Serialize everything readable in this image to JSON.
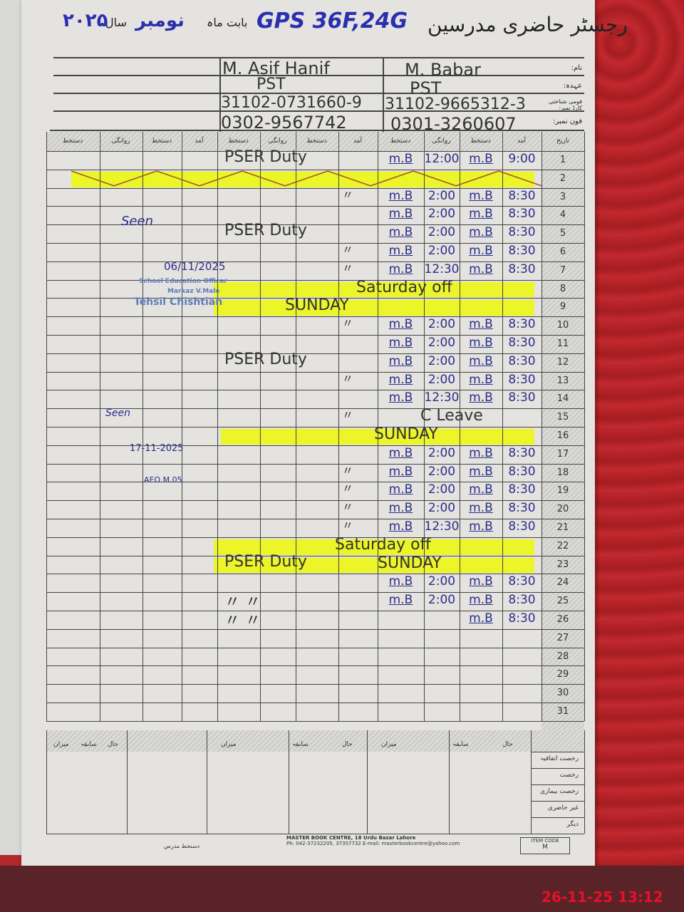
{
  "header": {
    "title_urdu": "رجسٹر حاضری مدرسین",
    "school": "GPS 36F,24G",
    "month_label": "بابت ماہ",
    "month": "نومبر",
    "year_label": "سال",
    "year": "۲۰۲۵"
  },
  "info_labels": [
    "نام:",
    "عہدہ:",
    "قومی شناختی کارڈ نمبر:",
    "فون نمبر:"
  ],
  "teachers": [
    {
      "name": "M. Babar",
      "designation": "PST",
      "cnic": "31102-9665312-3",
      "phone": "0301-3260607"
    },
    {
      "name": "M. Asif Hanif",
      "designation": "PST",
      "cnic": "31102-0731660-9",
      "phone": "0302-9567742"
    }
  ],
  "column_headers": {
    "date": "تاریخ",
    "arrival": "آمد",
    "signature": "دستخط",
    "departure": "روانگی"
  },
  "rows": [
    {
      "day": 1,
      "babar": [
        "m.B",
        "12:00",
        "m.B",
        "9:00"
      ],
      "asif": "PSER Duty"
    },
    {
      "day": 2,
      "babar": [
        "",
        "",
        "",
        ""
      ],
      "asif": ""
    },
    {
      "day": 3,
      "babar": [
        "m.B",
        "2:00",
        "m.B",
        "8:30"
      ],
      "asif": "〃"
    },
    {
      "day": 4,
      "babar": [
        "m.B",
        "2:00",
        "m.B",
        "8:30"
      ],
      "asif": ""
    },
    {
      "day": 5,
      "babar": [
        "m.B",
        "2:00",
        "m.B",
        "8:30"
      ],
      "asif": "PSER Duty"
    },
    {
      "day": 6,
      "babar": [
        "m.B",
        "2:00",
        "m.B",
        "8:30"
      ],
      "asif": "〃"
    },
    {
      "day": 7,
      "babar": [
        "m.B",
        "12:30",
        "m.B",
        "8:30"
      ],
      "asif": "〃"
    },
    {
      "day": 8,
      "babar": [
        "",
        "",
        "",
        ""
      ],
      "asif": ""
    },
    {
      "day": 9,
      "babar": [
        "",
        "",
        "",
        ""
      ],
      "asif": ""
    },
    {
      "day": 10,
      "babar": [
        "m.B",
        "2:00",
        "m.B",
        "8:30"
      ],
      "asif": "〃"
    },
    {
      "day": 11,
      "babar": [
        "m.B",
        "2:00",
        "m.B",
        "8:30"
      ],
      "asif": ""
    },
    {
      "day": 12,
      "babar": [
        "m.B",
        "2:00",
        "m.B",
        "8:30"
      ],
      "asif": "PSER Duty"
    },
    {
      "day": 13,
      "babar": [
        "m.B",
        "2:00",
        "m.B",
        "8:30"
      ],
      "asif": "〃"
    },
    {
      "day": 14,
      "babar": [
        "m.B",
        "12:30",
        "m.B",
        "8:30"
      ],
      "asif": ""
    },
    {
      "day": 15,
      "babar": [
        "",
        "",
        "",
        ""
      ],
      "asif": "〃"
    },
    {
      "day": 16,
      "babar": [
        "",
        "",
        "",
        ""
      ],
      "asif": ""
    },
    {
      "day": 17,
      "babar": [
        "m.B",
        "2:00",
        "m.B",
        "8:30"
      ],
      "asif": ""
    },
    {
      "day": 18,
      "babar": [
        "m.B",
        "2:00",
        "m.B",
        "8:30"
      ],
      "asif": "〃"
    },
    {
      "day": 19,
      "babar": [
        "m.B",
        "2:00",
        "m.B",
        "8:30"
      ],
      "asif": "〃"
    },
    {
      "day": 20,
      "babar": [
        "m.B",
        "2:00",
        "m.B",
        "8:30"
      ],
      "asif": "〃"
    },
    {
      "day": 21,
      "babar": [
        "m.B",
        "12:30",
        "m.B",
        "8:30"
      ],
      "asif": "〃"
    },
    {
      "day": 22,
      "babar": [
        "",
        "",
        "",
        ""
      ],
      "asif": ""
    },
    {
      "day": 23,
      "babar": [
        "",
        "",
        "",
        ""
      ],
      "asif": "PSER Duty"
    },
    {
      "day": 24,
      "babar": [
        "m.B",
        "2:00",
        "m.B",
        "8:30"
      ],
      "asif": ""
    },
    {
      "day": 25,
      "babar": [
        "m.B",
        "2:00",
        "m.B",
        "8:30"
      ],
      "asif": "〃   〃"
    },
    {
      "day": 26,
      "babar": [
        "",
        "",
        "m.B",
        "8:30"
      ],
      "asif": "〃   〃"
    },
    {
      "day": 27,
      "babar": [
        "",
        "",
        "",
        ""
      ],
      "asif": ""
    },
    {
      "day": 28,
      "babar": [
        "",
        "",
        "",
        ""
      ],
      "asif": ""
    },
    {
      "day": 29,
      "babar": [
        "",
        "",
        "",
        ""
      ],
      "asif": ""
    },
    {
      "day": 30,
      "babar": [
        "",
        "",
        "",
        ""
      ],
      "asif": ""
    },
    {
      "day": 31,
      "babar": [
        "",
        "",
        "",
        ""
      ],
      "asif": ""
    }
  ],
  "notes": [
    {
      "day": 8,
      "text": "Saturday off"
    },
    {
      "day": 9,
      "text": "SUNDAY"
    },
    {
      "day": 15,
      "text": "C Leave"
    },
    {
      "day": 16,
      "text": "SUNDAY"
    },
    {
      "day": 22,
      "text": "Saturday off"
    },
    {
      "day": 23,
      "text": "SUNDAY"
    }
  ],
  "highlighted_days": [
    2,
    8,
    9,
    16,
    22,
    23
  ],
  "highlight_color": "#ebf528",
  "supervisor_marks": {
    "seen_1": "Seen",
    "date_1": "06/11/2025",
    "stamp_line_1": "School Education Officer",
    "stamp_line_2": "Markaz V.Male",
    "stamp_line_3": "Tehsil Chishtian",
    "seen_2": "Seen",
    "date_2": "17-11-2025",
    "officer": "AEO M.05"
  },
  "summary_headers": [
    "میزان",
    "سابقہ",
    "حال"
  ],
  "summary_labels": [
    "رخصت اتفاقیہ",
    "رخصت",
    "رخصت بیماری",
    "غیر حاضری",
    "دیگر"
  ],
  "signature_label": "دستخط مدرس",
  "footer": {
    "line1": "MASTER BOOK CENTRE, 18 Urdu Bazar Lahore",
    "line2": "Ph: 042-37232205, 37357732 E-mail: masterbookcentre@yahoo.com",
    "item_code_label": "ITEM CODE",
    "item_code": "M"
  },
  "timestamp": "26-11-25  13:12",
  "timestamp_color": "#e8102a"
}
